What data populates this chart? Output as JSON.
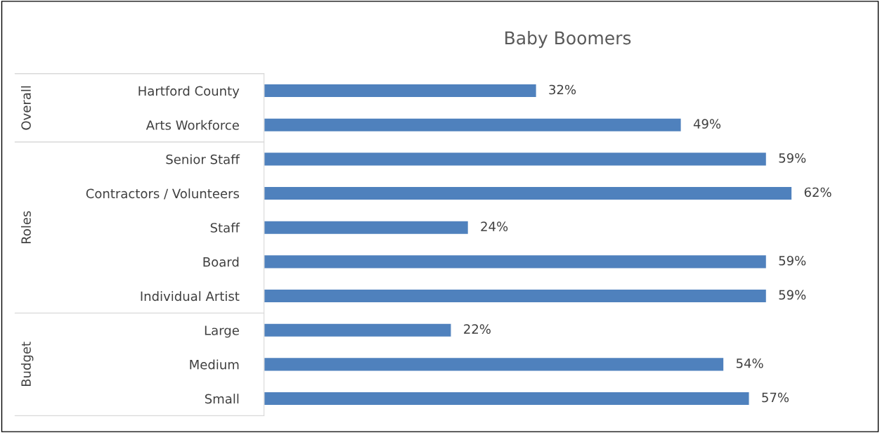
{
  "chart_data": {
    "type": "bar",
    "orientation": "horizontal",
    "title": "Baby Boomers",
    "categories": [
      "Hartford County",
      "Arts Workforce",
      "Senior Staff",
      "Contractors / Volunteers",
      "Staff",
      "Board",
      "Individual Artist",
      "Large",
      "Medium",
      "Small"
    ],
    "values": [
      32,
      49,
      59,
      62,
      24,
      59,
      59,
      22,
      54,
      57
    ],
    "value_labels": [
      "32%",
      "49%",
      "59%",
      "62%",
      "24%",
      "59%",
      "59%",
      "22%",
      "54%",
      "57%"
    ],
    "color": "#4f81bd",
    "annotations": [
      "Overall",
      "Roles",
      "Budget"
    ],
    "grid": false,
    "legend": false
  }
}
